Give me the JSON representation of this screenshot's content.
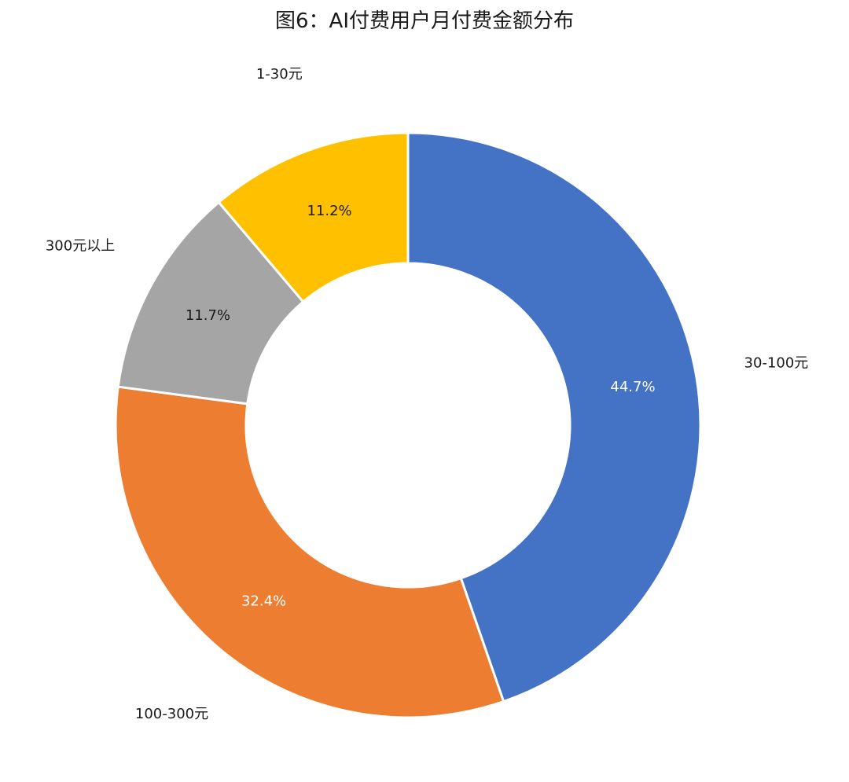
{
  "chart_data": {
    "type": "pie",
    "variant": "donut",
    "title": "图6：AI付费用户月付费金额分布",
    "legend": "none",
    "slices": [
      {
        "label": "30-100元",
        "value": 44.7,
        "display": "44.7%",
        "color": "#4472C4",
        "value_text_color": "#ffffff"
      },
      {
        "label": "100-300元",
        "value": 32.4,
        "display": "32.4%",
        "color": "#ED7D31",
        "value_text_color": "#ffffff"
      },
      {
        "label": "300元以上",
        "value": 11.7,
        "display": "11.7%",
        "color": "#A5A5A5",
        "value_text_color": "#1a1a1a"
      },
      {
        "label": "1-30元",
        "value": 11.2,
        "display": "11.2%",
        "color": "#FFC000",
        "value_text_color": "#1a1a1a"
      }
    ]
  }
}
